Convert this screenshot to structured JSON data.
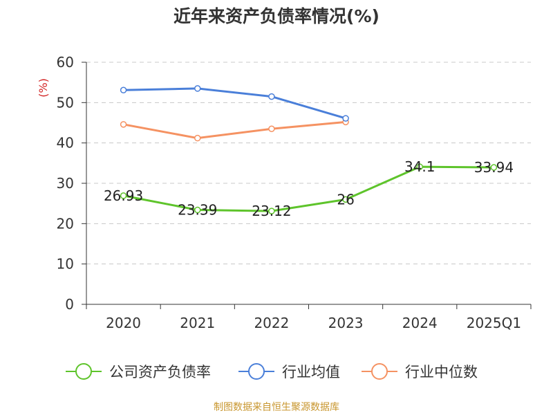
{
  "chart_data": {
    "type": "line",
    "title": "近年来资产负债率情况(%)",
    "ylabel": "(%)",
    "categories": [
      "2020",
      "2021",
      "2022",
      "2023",
      "2024",
      "2025Q1"
    ],
    "ylim": [
      0,
      60
    ],
    "yticks": [
      0,
      10,
      20,
      30,
      40,
      50,
      60
    ],
    "grid": true,
    "legend": "bottom",
    "series": [
      {
        "name": "公司资产负债率",
        "color": "#5ec42b",
        "values": [
          26.93,
          23.39,
          23.12,
          26,
          34.1,
          33.94
        ],
        "labels": [
          "26.93",
          "23.39",
          "23.12",
          "26",
          "34.1",
          "33.94"
        ]
      },
      {
        "name": "行业均值",
        "color": "#4a7fd9",
        "values": [
          53.1,
          53.5,
          51.5,
          46.1,
          null,
          null
        ]
      },
      {
        "name": "行业中位数",
        "color": "#f59262",
        "values": [
          44.6,
          41.2,
          43.5,
          45.2,
          null,
          null
        ]
      }
    ]
  },
  "source": "制图数据来自恒生聚源数据库"
}
